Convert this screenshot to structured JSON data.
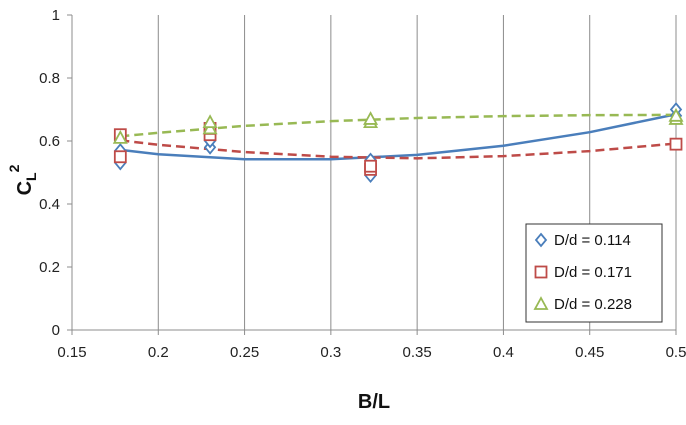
{
  "chart_data": {
    "type": "scatter",
    "xlabel": "B/L",
    "ylabel": "C_L^2",
    "ylabel_base": "C",
    "ylabel_sub": "L",
    "ylabel_sup": "2",
    "xlim": [
      0.15,
      0.5
    ],
    "ylim": [
      0,
      1
    ],
    "x_ticks": [
      0.15,
      0.2,
      0.25,
      0.3,
      0.35,
      0.4,
      0.45,
      0.5
    ],
    "x_tick_labels": [
      "0.15",
      "0.2",
      "0.25",
      "0.3",
      "0.35",
      "0.4",
      "0.45",
      "0.5"
    ],
    "y_ticks": [
      0,
      0.2,
      0.4,
      0.6,
      0.8,
      1
    ],
    "y_tick_labels": [
      "0",
      "0.2",
      "0.4",
      "0.6",
      "0.8",
      "1"
    ],
    "grid": "vertical lines at major x ticks",
    "legend": "bottom-right",
    "series": [
      {
        "name": "D/d = 0.114",
        "color": "#4a7ebb",
        "marker": "diamond",
        "x": [
          0.178,
          0.178,
          0.23,
          0.23,
          0.323,
          0.323,
          0.5,
          0.5
        ],
        "y": [
          0.53,
          0.57,
          0.58,
          0.6,
          0.49,
          0.54,
          0.68,
          0.7
        ],
        "trend": {
          "style": "solid",
          "x": [
            0.178,
            0.2,
            0.25,
            0.3,
            0.35,
            0.4,
            0.45,
            0.5
          ],
          "y": [
            0.572,
            0.558,
            0.542,
            0.542,
            0.556,
            0.585,
            0.628,
            0.685
          ]
        }
      },
      {
        "name": "D/d = 0.171",
        "color": "#be4b48",
        "marker": "square",
        "x": [
          0.178,
          0.178,
          0.23,
          0.23,
          0.323,
          0.323,
          0.5
        ],
        "y": [
          0.55,
          0.62,
          0.62,
          0.64,
          0.51,
          0.52,
          0.59
        ],
        "trend": {
          "style": "dashed",
          "x": [
            0.178,
            0.2,
            0.25,
            0.3,
            0.35,
            0.4,
            0.45,
            0.5
          ],
          "y": [
            0.602,
            0.588,
            0.565,
            0.55,
            0.545,
            0.552,
            0.568,
            0.592
          ]
        }
      },
      {
        "name": "D/d = 0.228",
        "color": "#98b954",
        "marker": "triangle",
        "x": [
          0.178,
          0.23,
          0.23,
          0.323,
          0.323,
          0.5,
          0.5
        ],
        "y": [
          0.61,
          0.64,
          0.66,
          0.66,
          0.67,
          0.67,
          0.68
        ],
        "trend": {
          "style": "dashed",
          "x": [
            0.178,
            0.2,
            0.25,
            0.3,
            0.35,
            0.4,
            0.45,
            0.5
          ],
          "y": [
            0.615,
            0.626,
            0.648,
            0.663,
            0.673,
            0.679,
            0.682,
            0.683
          ]
        }
      }
    ]
  }
}
